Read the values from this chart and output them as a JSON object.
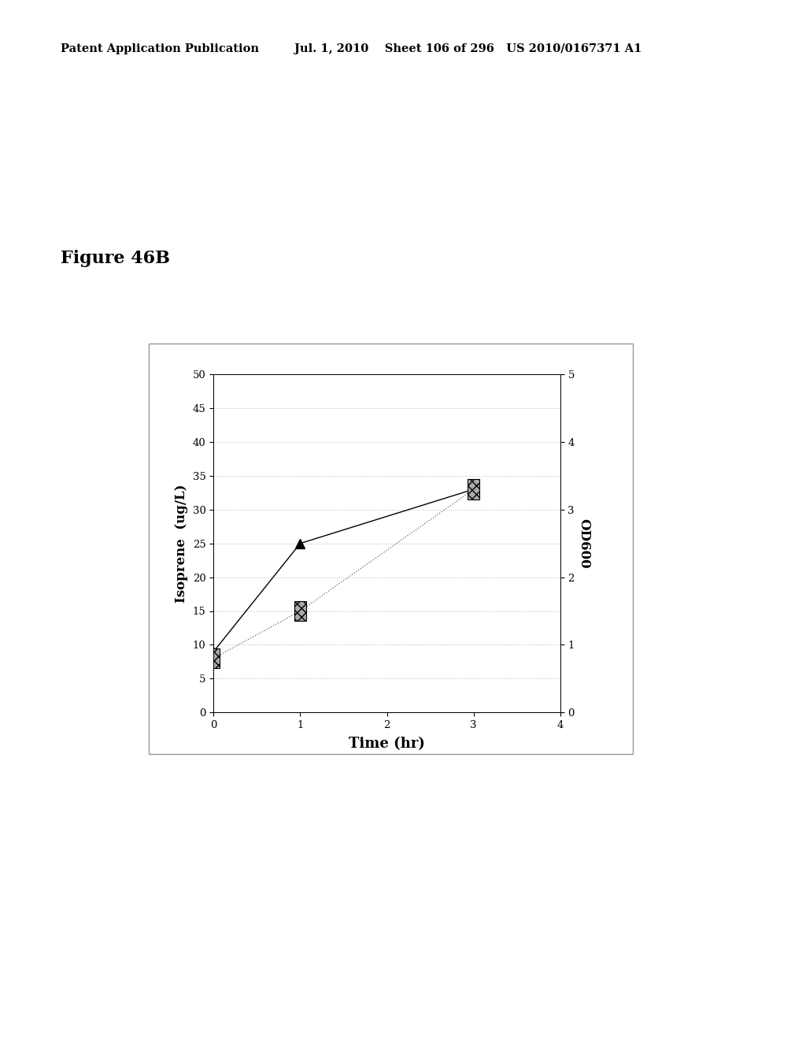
{
  "title_figure": "Figure 46B",
  "header_left": "Patent Application Publication",
  "header_center": "Jul. 1, 2010    Sheet 106 of 296   US 2010/0167371 A1",
  "xlabel": "Time (hr)",
  "ylabel_left": "Isoprene  (ug/L)",
  "ylabel_right": "OD600",
  "xlim": [
    0,
    4
  ],
  "ylim_left": [
    0,
    50
  ],
  "ylim_right": [
    0,
    5
  ],
  "yticks_left": [
    0,
    5,
    10,
    15,
    20,
    25,
    30,
    35,
    40,
    45,
    50
  ],
  "yticks_right": [
    0,
    1,
    2,
    3,
    4,
    5
  ],
  "xticks": [
    0,
    1,
    2,
    3,
    4
  ],
  "isoprene_time": [
    0,
    1,
    3
  ],
  "isoprene_values": [
    9,
    25,
    33
  ],
  "od600_time": [
    0,
    1,
    3
  ],
  "od600_values": [
    8,
    15,
    33
  ],
  "isoprene_color": "#000000",
  "od600_color": "#666666",
  "bg_color": "#ffffff",
  "plot_bg_color": "#ffffff",
  "grid_color": "#bbbbbb",
  "box_color": "#000000",
  "outer_box_color": "#999999"
}
